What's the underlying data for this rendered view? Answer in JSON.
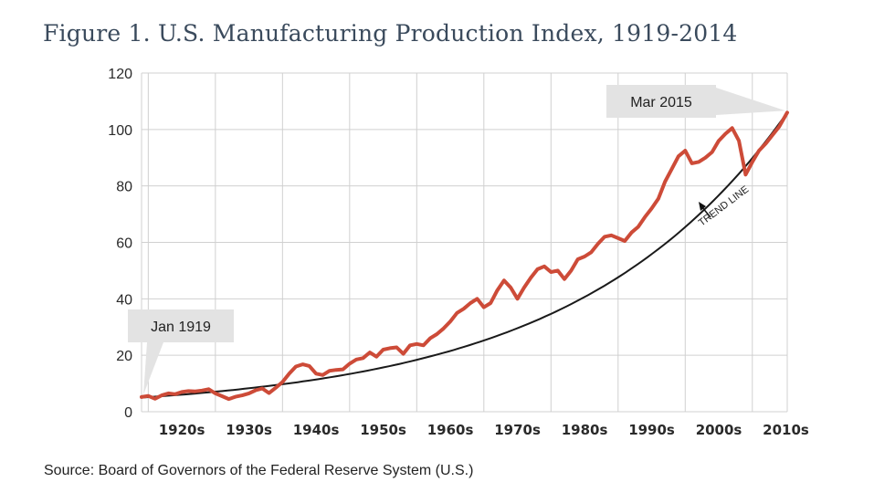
{
  "title": "Figure 1. U.S. Manufacturing Production Index, 1919-2014",
  "source": "Source: Board of Governors of the Federal Reserve System (U.S.)",
  "colors": {
    "series": "#cd4b38",
    "trend": "#1a1a1a",
    "grid": "#d0d0d0",
    "callout": "#e3e3e3"
  },
  "chart_data": {
    "type": "line",
    "title": "Figure 1. U.S. Manufacturing Production Index, 1919-2014",
    "xlabel": "",
    "ylabel": "",
    "ylim": [
      0,
      120
    ],
    "xlim": [
      1919,
      2015.2
    ],
    "grid": true,
    "legend": "none",
    "y_ticks": [
      "0",
      "20",
      "40",
      "60",
      "80",
      "100",
      "120"
    ],
    "x_tick_labels": [
      "1920s",
      "1930s",
      "1940s",
      "1950s",
      "1960s",
      "1970s",
      "1980s",
      "1990s",
      "2000s",
      "2010s"
    ],
    "annotations": [
      {
        "text": "Jan 1919",
        "x": 1919.0,
        "y": 5
      },
      {
        "text": "Mar 2015",
        "x": 2015.2,
        "y": 106
      },
      {
        "text": "TREND LINE",
        "x": 2006,
        "y": 72
      }
    ],
    "series": [
      {
        "x": [
          1919,
          1920,
          1921,
          1922,
          1923,
          1924,
          1925,
          1926,
          1927,
          1928,
          1929,
          1930,
          1931,
          1932,
          1933,
          1934,
          1935,
          1936,
          1937,
          1938,
          1939,
          1940,
          1941,
          1942,
          1943,
          1944,
          1945,
          1946,
          1947,
          1948,
          1949,
          1950,
          1951,
          1952,
          1953,
          1954,
          1955,
          1956,
          1957,
          1958,
          1959,
          1960,
          1961,
          1962,
          1963,
          1964,
          1965,
          1966,
          1967,
          1968,
          1969,
          1970,
          1971,
          1972,
          1973,
          1974,
          1975,
          1976,
          1977,
          1978,
          1979,
          1980,
          1981,
          1982,
          1983,
          1984,
          1985,
          1986,
          1987,
          1988,
          1989,
          1990,
          1991,
          1992,
          1993,
          1994,
          1995,
          1996,
          1997,
          1998,
          1999,
          2000,
          2001,
          2002,
          2003,
          2004,
          2005,
          2006,
          2007,
          2008,
          2009,
          2010,
          2011,
          2012,
          2013,
          2014,
          2015.2
        ],
        "values": [
          5.2,
          5.6,
          4.6,
          5.8,
          6.5,
          6.2,
          7.0,
          7.3,
          7.2,
          7.5,
          8.0,
          6.5,
          5.5,
          4.5,
          5.3,
          5.8,
          6.5,
          7.6,
          8.2,
          6.6,
          8.5,
          10.5,
          13.5,
          16.0,
          16.8,
          16.2,
          13.5,
          13.0,
          14.5,
          14.8,
          15.0,
          17.0,
          18.5,
          19.0,
          21.0,
          19.5,
          22.0,
          22.5,
          22.8,
          20.5,
          23.5,
          24.0,
          23.5,
          26.0,
          27.5,
          29.5,
          32.0,
          35.0,
          36.5,
          38.5,
          40.0,
          37.0,
          38.5,
          43.0,
          46.5,
          44.0,
          40.0,
          44.0,
          47.5,
          50.5,
          51.5,
          49.5,
          50.0,
          47.0,
          50.0,
          54.0,
          55.0,
          56.5,
          59.5,
          62.0,
          62.5,
          61.5,
          60.5,
          63.5,
          65.5,
          69.0,
          72.0,
          75.5,
          81.5,
          86.0,
          90.5,
          92.5,
          88.0,
          88.5,
          90.0,
          92.0,
          96.0,
          98.5,
          100.5,
          96.0,
          84.0,
          88.5,
          92.5,
          95.0,
          98.0,
          101.0,
          106.0
        ]
      },
      {
        "name": "TREND LINE",
        "x": [
          1919,
          2015.2
        ],
        "fit": "exponential",
        "values": [
          5.0,
          106.0
        ]
      }
    ]
  }
}
